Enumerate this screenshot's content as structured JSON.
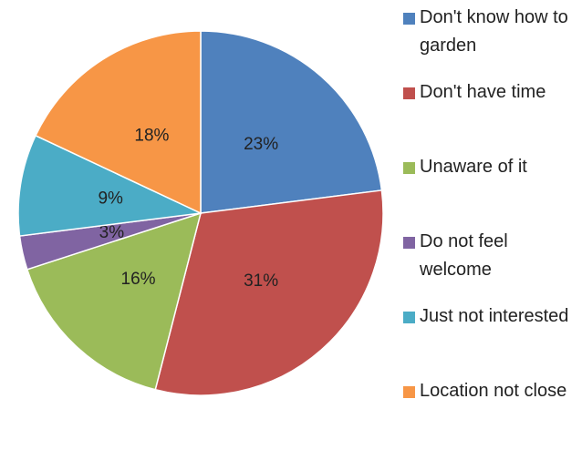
{
  "chart_data": {
    "type": "pie",
    "categories": [
      "Don't know how to garden",
      "Don't have time",
      "Unaware of it",
      "Do not feel welcome",
      "Just not interested",
      "Location not close"
    ],
    "values": [
      23,
      31,
      16,
      3,
      9,
      18
    ],
    "value_labels": [
      "23%",
      "31%",
      "16%",
      "3%",
      "9%",
      "18%"
    ],
    "colors": [
      "#4f81bd",
      "#c0504d",
      "#9bbb59",
      "#8064a2",
      "#4bacc6",
      "#f79646"
    ],
    "legend": "right"
  }
}
